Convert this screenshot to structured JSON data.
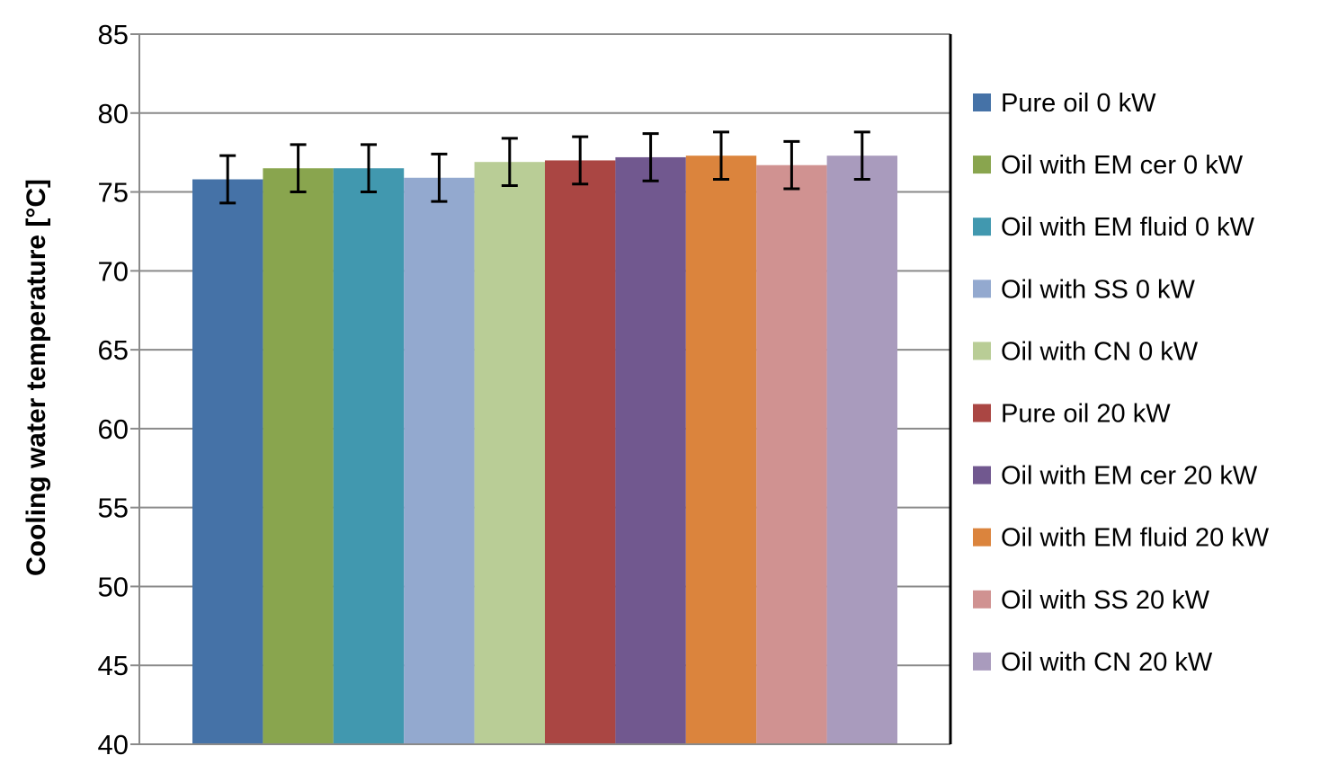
{
  "chart_data": {
    "type": "bar",
    "title": "",
    "xlabel": "",
    "ylabel": "Cooling water temperature [°C]",
    "ylim": [
      40,
      85
    ],
    "yticks": [
      40,
      45,
      50,
      55,
      60,
      65,
      70,
      75,
      80,
      85
    ],
    "grid": true,
    "legend_position": "right",
    "series": [
      {
        "name": "Pure oil 0 kW",
        "value": 75.8,
        "error": 1.5,
        "color": "#4572A7"
      },
      {
        "name": "Oil with EM cer 0 kW",
        "value": 76.5,
        "error": 1.5,
        "color": "#89A54E"
      },
      {
        "name": "Oil with EM fluid 0 kW",
        "value": 76.5,
        "error": 1.5,
        "color": "#4198AF"
      },
      {
        "name": "Oil with SS 0 kW",
        "value": 75.9,
        "error": 1.5,
        "color": "#93A9CF"
      },
      {
        "name": "Oil with CN 0 kW",
        "value": 76.9,
        "error": 1.5,
        "color": "#B9CD96"
      },
      {
        "name": "Pure oil 20 kW",
        "value": 77.0,
        "error": 1.5,
        "color": "#AA4643"
      },
      {
        "name": "Oil with EM cer 20 kW",
        "value": 77.2,
        "error": 1.5,
        "color": "#71588F"
      },
      {
        "name": "Oil with EM fluid 20 kW",
        "value": 77.3,
        "error": 1.5,
        "color": "#DB843D"
      },
      {
        "name": "Oil with SS 20 kW",
        "value": 76.7,
        "error": 1.5,
        "color": "#D09291"
      },
      {
        "name": "Oil with CN 20 kW",
        "value": 77.3,
        "error": 1.5,
        "color": "#A99BBD"
      }
    ]
  }
}
